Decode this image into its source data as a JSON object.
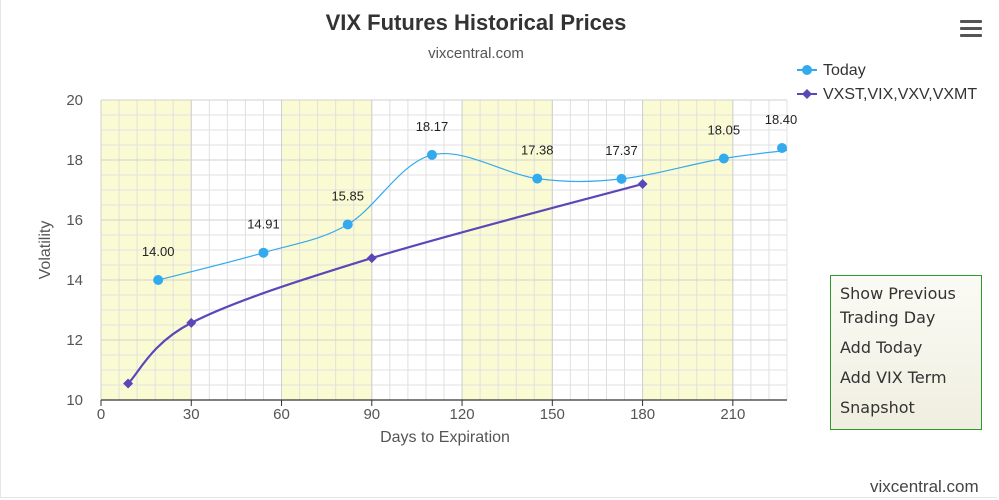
{
  "colors": {
    "band": "#fbfbd3",
    "grid": "#e0e0e0",
    "today": "#33aaee",
    "term": "#5a48b8",
    "axis": "#333333",
    "menu_border": "#2c9b2c"
  },
  "credits": "vixcentral.com",
  "menu_icon": "hamburger-menu-icon",
  "context_menu": {
    "items": [
      "Show Previous Trading Day",
      "Add Today",
      "Add VIX Term",
      "Snapshot"
    ]
  },
  "chart_data": {
    "type": "line",
    "title": "VIX Futures Historical Prices",
    "subtitle": "vixcentral.com",
    "xlabel": "Days to Expiration",
    "ylabel": "Volatility",
    "xlim": [
      0,
      228
    ],
    "ylim": [
      10,
      20
    ],
    "x_ticks": [
      0,
      30,
      60,
      90,
      120,
      150,
      180,
      210
    ],
    "y_ticks": [
      10,
      12,
      14,
      16,
      18,
      20
    ],
    "shaded_bands": [
      [
        0,
        30
      ],
      [
        60,
        90
      ],
      [
        120,
        150
      ],
      [
        180,
        210
      ]
    ],
    "grid": true,
    "legend_position": "top-right",
    "series": [
      {
        "name": "Today",
        "marker": "circle",
        "x": [
          19,
          54,
          82,
          110,
          145,
          173,
          207,
          235
        ],
        "y": [
          14.0,
          14.91,
          15.85,
          18.17,
          17.38,
          17.37,
          18.05,
          18.4
        ],
        "labels": [
          "14.00",
          "14.91",
          "15.85",
          "18.17",
          "17.38",
          "17.37",
          "18.05",
          "18.40"
        ]
      },
      {
        "name": "VXST,VIX,VXV,VXMT",
        "marker": "diamond",
        "x": [
          9,
          30,
          90,
          180
        ],
        "y": [
          10.55,
          12.57,
          14.73,
          17.2
        ]
      }
    ]
  }
}
